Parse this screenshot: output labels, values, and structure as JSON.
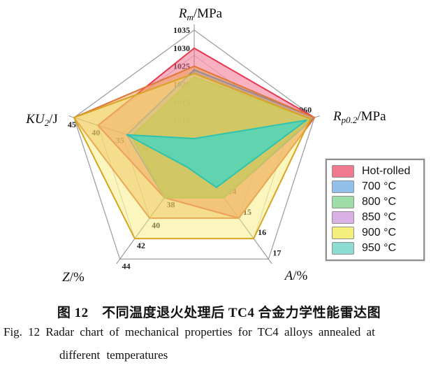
{
  "figure": {
    "caption_zh": "图 12　不同温度退火处理后 TC4 合金力学性能雷达图",
    "caption_en_line1": "Fig. 12   Radar chart of mechanical properties for TC4 alloys annealed at",
    "caption_en_line2": "different temperatures"
  },
  "chart_data": {
    "type": "radar",
    "axis_count": 5,
    "grid": "pentagon-rings",
    "legend_position": "right",
    "axes": [
      {
        "id": "Rm",
        "label_main": "R",
        "label_sub": "m",
        "label_unit": "/MPa",
        "min": 1000,
        "max": 1035,
        "ticks": [
          1035,
          1030,
          1025,
          1020,
          1015,
          1010
        ]
      },
      {
        "id": "Rp02",
        "label_main": "R",
        "label_sub": "p0.2",
        "label_unit": "/MPa",
        "min": 930,
        "max": 960,
        "ticks": [
          960
        ]
      },
      {
        "id": "A",
        "label_main": "A",
        "label_sub": "",
        "label_unit": "/%",
        "min": 12,
        "max": 17,
        "ticks": [
          17,
          16,
          15,
          14
        ]
      },
      {
        "id": "Z",
        "label_main": "Z",
        "label_sub": "",
        "label_unit": "/%",
        "min": 34,
        "max": 44,
        "ticks": [
          44,
          42,
          40,
          38
        ]
      },
      {
        "id": "KU2",
        "label_main": "KU",
        "label_sub": "2",
        "label_unit": "/J",
        "min": 20,
        "max": 45,
        "ticks": [
          45,
          40,
          35,
          30
        ]
      }
    ],
    "series": [
      {
        "name": "Hot-rolled",
        "legend_color": "#f0798e",
        "fill": "rgba(240,100,130,0.50)",
        "stroke": "#e8374f",
        "values": {
          "Rm": 1030,
          "Rp02": 960,
          "A": 15,
          "Z": 38,
          "KU2": 40
        }
      },
      {
        "name": "700 °C",
        "legend_color": "#92c0ea",
        "fill": "rgba(110,160,230,0.40)",
        "stroke": "#4b82d7",
        "values": {
          "Rm": 1024,
          "Rp02": 960,
          "A": 14,
          "Z": 38,
          "KU2": 34
        }
      },
      {
        "name": "800 °C",
        "legend_color": "#9edca8",
        "fill": "rgba(112,194,74,0.65)",
        "stroke": "#6db84a",
        "values": {
          "Rm": 1022,
          "Rp02": 959,
          "A": 14,
          "Z": 38,
          "KU2": 33
        }
      },
      {
        "name": "850 °C",
        "legend_color": "#d9b1e4",
        "fill": "rgba(235,154,62,0.45)",
        "stroke": "#e0763a",
        "values": {
          "Rm": 1025,
          "Rp02": 960,
          "A": 15,
          "Z": 40,
          "KU2": 45
        }
      },
      {
        "name": "900 °C",
        "legend_color": "#f4ee7d",
        "fill": "rgba(245,235,110,0.45)",
        "stroke": "#d8a421",
        "values": {
          "Rm": 1023,
          "Rp02": 959,
          "A": 16,
          "Z": 42,
          "KU2": 45
        }
      },
      {
        "name": "950 °C",
        "legend_color": "#8cdcd2",
        "fill": "rgba(69,214,194,0.80)",
        "stroke": "#2ec3ae",
        "values": {
          "Rm": 1005,
          "Rp02": 958,
          "A": 13.5,
          "Z": 35,
          "KU2": 34
        }
      }
    ]
  }
}
